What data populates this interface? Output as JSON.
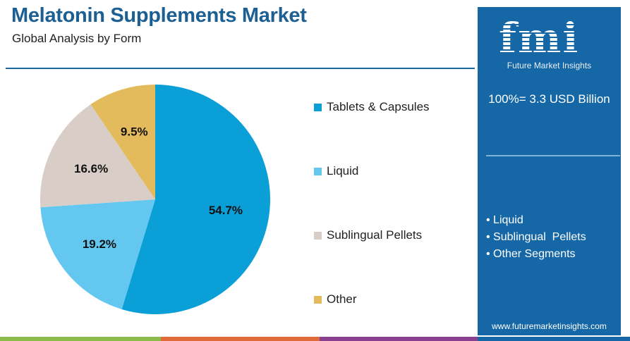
{
  "header": {
    "title": "Melatonin Supplements Market",
    "subtitle": "Global Analysis by Form"
  },
  "chart_data": {
    "type": "pie",
    "categories": [
      "Tablets & Capsules",
      "Liquid",
      "Sublingual Pellets",
      "Other"
    ],
    "values": [
      54.7,
      19.2,
      16.6,
      9.5
    ],
    "labels": [
      "54.7%",
      "19.2%",
      "16.6%",
      "9.5%"
    ],
    "colors": [
      "#0b9fd8",
      "#63c7f0",
      "#d8cec7",
      "#e4bb5c"
    ],
    "legend_position": "right"
  },
  "panel": {
    "logo_text": "fmi",
    "logo_subtitle": "Future Market Insights",
    "total": "100%= 3.3 USD Billion",
    "bullets": [
      "• Liquid",
      "• Sublingual  Pellets",
      "• Other Segments"
    ],
    "url": "www.futuremarketinsights.com"
  },
  "footer_colors": [
    "#8dbb4b",
    "#e06a3a",
    "#8b3f8f",
    "#1667a6"
  ]
}
